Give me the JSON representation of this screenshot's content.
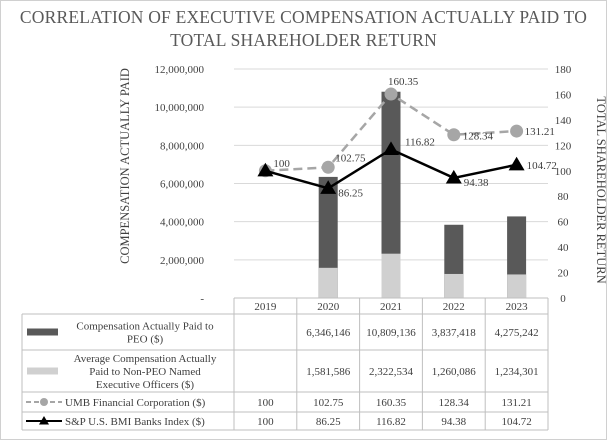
{
  "title_lines": [
    "CORRELATION OF EXECUTIVE COMPENSATION ACTUALLY PAID TO",
    "TOTAL SHAREHOLDER RETURN"
  ],
  "chart_data": {
    "type": "bar",
    "title": "CORRELATION OF EXECUTIVE COMPENSATION ACTUALLY PAID TO TOTAL SHAREHOLDER RETURN",
    "categories": [
      "2019",
      "2020",
      "2021",
      "2022",
      "2023"
    ],
    "ylabel": "COMPENSATION ACTUALLY PAID",
    "y2label": "TOTAL SHAREHOLDER RETURN",
    "ylim": [
      0,
      12000000
    ],
    "y2lim": [
      0,
      180
    ],
    "y_ticks": [
      "-",
      "2,000,000",
      "4,000,000",
      "6,000,000",
      "8,000,000",
      "10,000,000",
      "12,000,000"
    ],
    "y2_ticks": [
      "0",
      "20",
      "40",
      "60",
      "80",
      "100",
      "120",
      "140",
      "160",
      "180"
    ],
    "grid": true,
    "series": [
      {
        "name": "Compensation Actually Paid to PEO ($)",
        "name_lines": [
          "Compensation Actually Paid to",
          "PEO ($)"
        ],
        "type": "bar",
        "axis": "left",
        "color": "#595959",
        "values": [
          null,
          6346146,
          10809136,
          3837418,
          4275242
        ],
        "table_values": [
          "",
          "6,346,146",
          "10,809,136",
          "3,837,418",
          "4,275,242"
        ]
      },
      {
        "name": "Average Compensation Actually Paid to Non-PEO Named Executive Officers ($)",
        "name_lines": [
          "Average Compensation Actually",
          "Paid to Non-PEO Named",
          "Executive Officers ($)"
        ],
        "type": "bar",
        "axis": "left",
        "color": "#d0d0d0",
        "values": [
          null,
          1581586,
          2322534,
          1260086,
          1234301
        ],
        "table_values": [
          "",
          "1,581,586",
          "2,322,534",
          "1,260,086",
          "1,234,301"
        ]
      },
      {
        "name": "UMB Financial Corporation ($)",
        "name_lines": [
          "UMB Financial Corporation ($)"
        ],
        "type": "line",
        "style": "dashed-circle",
        "axis": "right",
        "color": "#a6a6a6",
        "values": [
          100,
          102.75,
          160.35,
          128.34,
          131.21
        ],
        "labels": [
          "100",
          "102.75",
          "160.35",
          "128.34",
          "131.21"
        ],
        "table_values": [
          "100",
          "102.75",
          "160.35",
          "128.34",
          "131.21"
        ]
      },
      {
        "name": "S&P U.S. BMI Banks Index ($)",
        "name_lines": [
          "S&P U.S. BMI Banks Index ($)"
        ],
        "type": "line",
        "style": "solid-triangle",
        "axis": "right",
        "color": "#000000",
        "values": [
          100,
          86.25,
          116.82,
          94.38,
          104.72
        ],
        "labels": [
          "",
          "86.25",
          "116.82",
          "94.38",
          "104.72"
        ],
        "table_values": [
          "100",
          "86.25",
          "116.82",
          "94.38",
          "104.72"
        ]
      }
    ]
  }
}
